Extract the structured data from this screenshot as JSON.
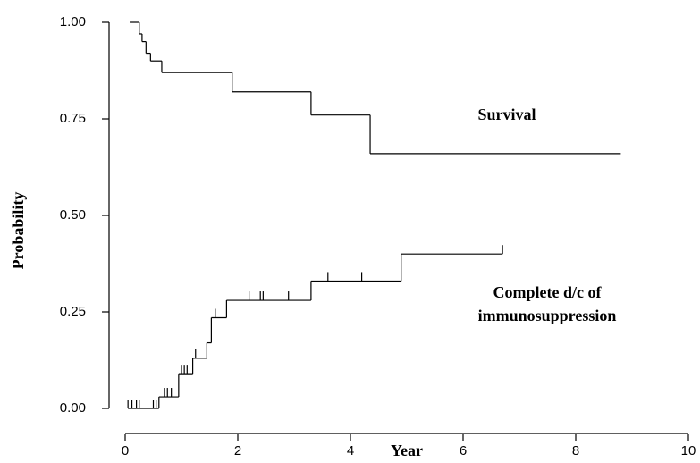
{
  "chart_data": {
    "type": "step",
    "x_label": "Year",
    "y_label": "Probability",
    "xlim": [
      0,
      10
    ],
    "xticks": [
      0,
      2,
      4,
      6,
      8,
      10
    ],
    "ylim": [
      0,
      1
    ],
    "yticks": [
      {
        "value": 0,
        "label": "0.00"
      },
      {
        "value": 0.25,
        "label": "0.25"
      },
      {
        "value": 0.5,
        "label": "0.50"
      },
      {
        "value": 0.75,
        "label": "0.75"
      },
      {
        "value": 1,
        "label": "1.00"
      }
    ],
    "series": [
      {
        "color": "#000000",
        "x": [
          0.08,
          0.25,
          0.3,
          0.37,
          0.45,
          0.65,
          1.9,
          3.3,
          4.35,
          8.8
        ],
        "values": [
          1,
          0.97,
          0.95,
          0.92,
          0.9,
          0.87,
          0.82,
          0.76,
          0.66,
          0.66
        ],
        "censored_x": []
      },
      {
        "color": "#000000",
        "x": [
          0.05,
          0.6,
          0.95,
          1.2,
          1.45,
          1.53,
          1.8,
          3.3,
          4.9,
          6.7
        ],
        "values": [
          0,
          0.03,
          0.09,
          0.13,
          0.17,
          0.235,
          0.28,
          0.33,
          0.4,
          0.4
        ],
        "censored_x": [
          0.05,
          0.12,
          0.2,
          0.25,
          0.5,
          0.55,
          0.7,
          0.75,
          0.82,
          1.0,
          1.05,
          1.1,
          1.25,
          1.6,
          2.2,
          2.4,
          2.45,
          2.9,
          3.6,
          4.2,
          6.7
        ]
      }
    ],
    "annotations": [
      "Survival",
      "Complete d/c of",
      "immunosuppression"
    ]
  }
}
